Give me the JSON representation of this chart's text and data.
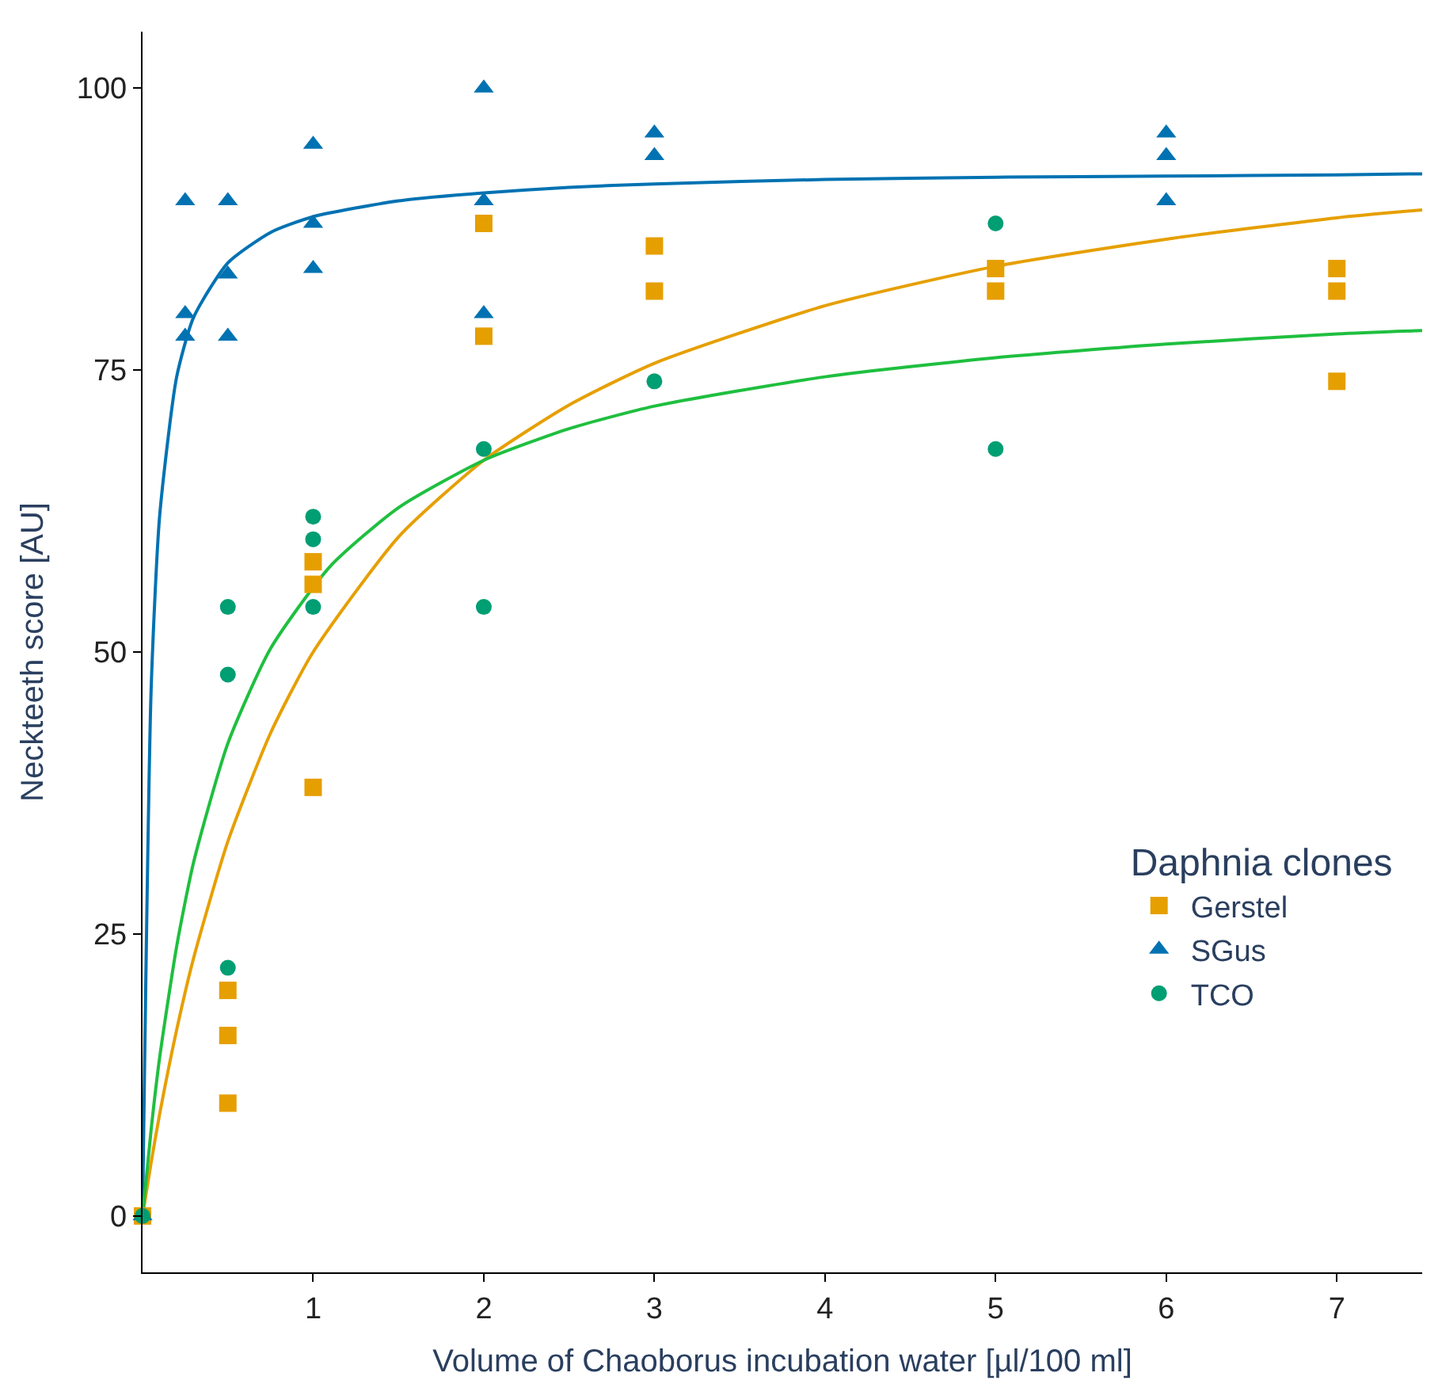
{
  "chart_data": {
    "type": "scatter",
    "xlabel": "Volume of Chaoborus incubation water [µl/100 ml]",
    "ylabel": "Neckteeth score [AU]",
    "legend_title": "Daphnia clones",
    "legend": "bottom right",
    "xlim": [
      0,
      7.5
    ],
    "xticks": [
      1,
      2,
      3,
      4,
      5,
      6,
      7
    ],
    "ylim": [
      -5,
      105
    ],
    "yticks": [
      0,
      25,
      50,
      75,
      100
    ],
    "series": [
      {
        "name": "Gerstel",
        "marker": "square",
        "color": "#e69f00",
        "x": [
          0,
          0.5,
          0.5,
          0.5,
          1,
          1,
          1,
          2,
          2,
          3,
          3,
          5,
          5,
          7,
          7,
          7
        ],
        "values": [
          0,
          20,
          16,
          10,
          58,
          56,
          38,
          88,
          78,
          86,
          82,
          84,
          82,
          84,
          82,
          74
        ]
      },
      {
        "name": "SGus",
        "marker": "triangle",
        "color": "#0072b2",
        "x": [
          0,
          0.25,
          0.25,
          0.25,
          0.5,
          0.5,
          0.5,
          1,
          1,
          1,
          2,
          2,
          2,
          3,
          3,
          6,
          6,
          6
        ],
        "values": [
          0,
          90,
          80,
          78,
          90,
          83.5,
          78,
          95,
          88,
          84,
          100,
          90,
          80,
          96,
          94,
          96,
          94,
          90
        ]
      },
      {
        "name": "TCO",
        "marker": "circle",
        "color": "#009e73",
        "x": [
          0,
          0.5,
          0.5,
          0.5,
          1,
          1,
          1,
          2,
          2,
          3,
          5,
          5
        ],
        "values": [
          0,
          54,
          48,
          22,
          62,
          60,
          54,
          68,
          54,
          74,
          88,
          68
        ]
      },
      {
        "type": "line",
        "marker": "none",
        "line_style": "solid",
        "color": "#e69f00",
        "x": [
          0,
          0.05,
          0.1,
          0.2,
          0.3,
          0.5,
          0.75,
          1,
          1.5,
          2,
          2.5,
          3,
          4,
          5,
          6,
          7,
          7.5
        ],
        "values": [
          0,
          4.7,
          9.0,
          16.5,
          22.9,
          33.2,
          42.8,
          50.0,
          60.2,
          67.0,
          71.9,
          75.6,
          80.7,
          84.2,
          86.6,
          88.5,
          89.2
        ]
      },
      {
        "type": "line",
        "marker": "none",
        "line_style": "solid",
        "color": "#0072b2",
        "x": [
          0,
          0.05,
          0.1,
          0.2,
          0.3,
          0.5,
          0.75,
          1,
          1.5,
          2,
          2.5,
          3,
          4,
          5,
          6,
          7,
          7.5
        ],
        "values": [
          0,
          46.5,
          62,
          74.4,
          79.7,
          84.5,
          87.2,
          88.6,
          90,
          90.7,
          91.2,
          91.5,
          91.9,
          92.1,
          92.2,
          92.3,
          92.4
        ]
      },
      {
        "type": "line",
        "marker": "none",
        "line_style": "solid",
        "color": "#1fbf3f",
        "x": [
          0,
          0.05,
          0.1,
          0.2,
          0.3,
          0.5,
          0.75,
          1.1,
          1.5,
          2,
          2.5,
          3,
          4,
          5,
          6,
          7,
          7.5
        ],
        "values": [
          0,
          7.6,
          14.0,
          23.9,
          31.4,
          41.9,
          50.3,
          57.6,
          62.8,
          67.0,
          69.8,
          71.8,
          74.4,
          76.1,
          77.3,
          78.2,
          78.5
        ]
      }
    ]
  }
}
